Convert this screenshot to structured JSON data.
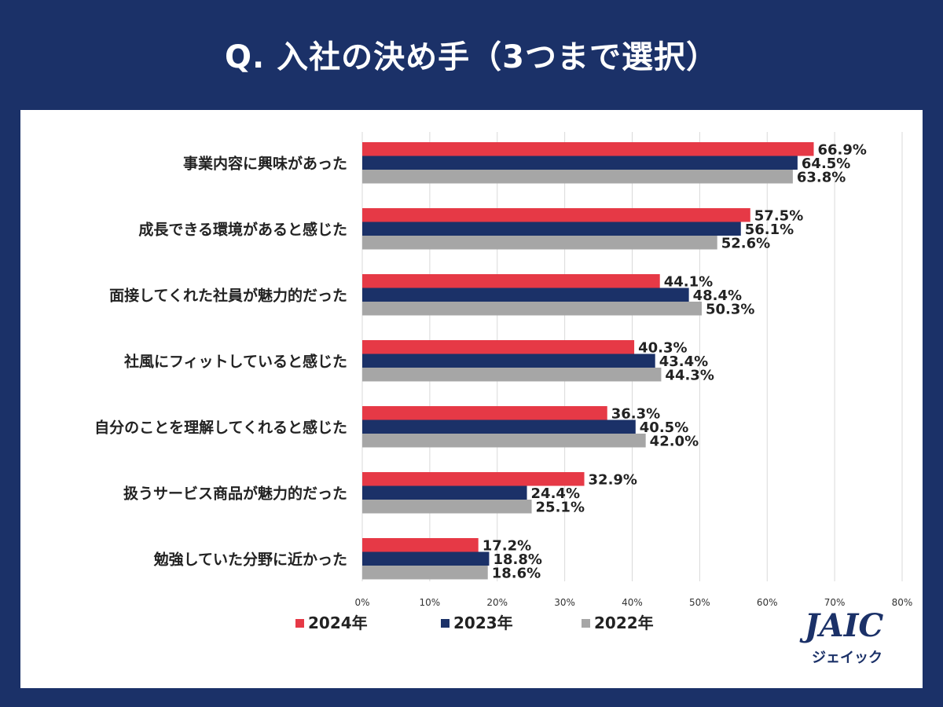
{
  "header": {
    "title": "Q. 入社の決め手（3つまで選択）"
  },
  "logo": {
    "brand": "JAIC",
    "sub": "ジェイック"
  },
  "chart_data": {
    "type": "bar",
    "orientation": "horizontal",
    "title": "Q. 入社の決め手（3つまで選択）",
    "categories": [
      "事業内容に興味があった",
      "成長できる環境があると感じた",
      "面接してくれた社員が魅力的だった",
      "社風にフィットしていると感じた",
      "自分のことを理解してくれると感じた",
      "扱うサービス商品が魅力的だった",
      "勉強していた分野に近かった"
    ],
    "series": [
      {
        "name": "2024年",
        "color": "#e63946",
        "values": [
          66.9,
          57.5,
          44.1,
          40.3,
          36.3,
          32.9,
          17.2
        ]
      },
      {
        "name": "2023年",
        "color": "#1b3168",
        "values": [
          64.5,
          56.1,
          48.4,
          43.4,
          40.5,
          24.4,
          18.8
        ]
      },
      {
        "name": "2022年",
        "color": "#a6a6a6",
        "values": [
          63.8,
          52.6,
          50.3,
          44.3,
          42.0,
          25.1,
          18.6
        ]
      }
    ],
    "xlim": [
      0,
      80
    ],
    "ticks": [
      "0%",
      "10%",
      "20%",
      "30%",
      "40%",
      "50%",
      "60%",
      "70%",
      "80%"
    ],
    "tick_values": [
      0,
      10,
      20,
      30,
      40,
      50,
      60,
      70,
      80
    ],
    "value_labels": [
      [
        "66.9%",
        "57.5%",
        "44.1%",
        "40.3%",
        "36.3%",
        "32.9%",
        "17.2%"
      ],
      [
        "64.5%",
        "56.1%",
        "48.4%",
        "43.4%",
        "40.5%",
        "24.4%",
        "18.8%"
      ],
      [
        "63.8%",
        "52.6%",
        "50.3%",
        "44.3%",
        "42.0%",
        "25.1%",
        "18.6%"
      ]
    ],
    "grid": true,
    "legend_position": "bottom"
  }
}
